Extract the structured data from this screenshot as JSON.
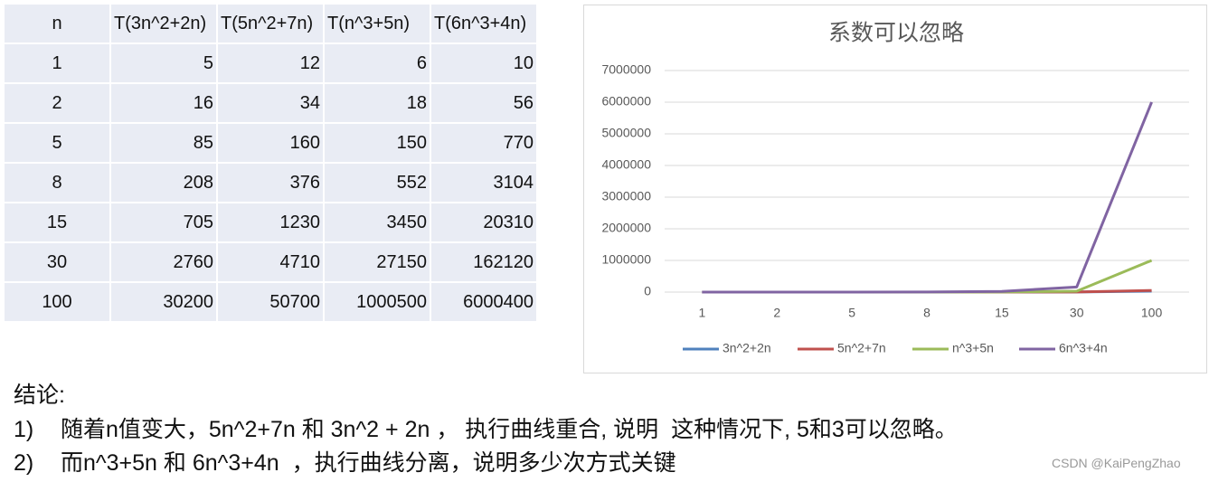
{
  "table": {
    "header": [
      "n",
      "T(3n^2+2n)",
      "T(5n^2+7n)",
      "T(n^3+5n)",
      "T(6n^3+4n)"
    ],
    "rows": [
      [
        1,
        5,
        12,
        6,
        10
      ],
      [
        2,
        16,
        34,
        18,
        56
      ],
      [
        5,
        85,
        160,
        150,
        770
      ],
      [
        8,
        208,
        376,
        552,
        3104
      ],
      [
        15,
        705,
        1230,
        3450,
        20310
      ],
      [
        30,
        2760,
        4710,
        27150,
        162120
      ],
      [
        100,
        30200,
        50700,
        1000500,
        6000400
      ]
    ]
  },
  "chart_data": {
    "type": "line",
    "title": "系数可以忽略",
    "categories": [
      "1",
      "2",
      "5",
      "8",
      "15",
      "30",
      "100"
    ],
    "series": [
      {
        "name": "3n^2+2n",
        "color": "#4f81bd",
        "values": [
          5,
          16,
          85,
          208,
          705,
          2760,
          30200
        ]
      },
      {
        "name": "5n^2+7n",
        "color": "#c0504d",
        "values": [
          12,
          34,
          160,
          376,
          1230,
          4710,
          50700
        ]
      },
      {
        "name": "n^3+5n",
        "color": "#9bbb59",
        "values": [
          6,
          18,
          150,
          552,
          3450,
          27150,
          1000500
        ]
      },
      {
        "name": "6n^3+4n",
        "color": "#8064a2",
        "values": [
          10,
          56,
          770,
          3104,
          20310,
          162120,
          6000400
        ]
      }
    ],
    "ylim": [
      0,
      7000000
    ],
    "yticks": [
      0,
      1000000,
      2000000,
      3000000,
      4000000,
      5000000,
      6000000,
      7000000
    ],
    "grid": true,
    "legend": "bottom"
  },
  "conclusion": {
    "heading": "结论:",
    "items": [
      {
        "marker": "1)",
        "text": "随着n值变大，5n^2+7n 和 3n^2 + 2n ， 执行曲线重合, 说明  这种情况下, 5和3可以忽略。"
      },
      {
        "marker": "2)",
        "text": "而n^3+5n 和 6n^3+4n  ，执行曲线分离，说明多少次方式关键"
      }
    ]
  },
  "watermark": "CSDN @KaiPengZhao"
}
